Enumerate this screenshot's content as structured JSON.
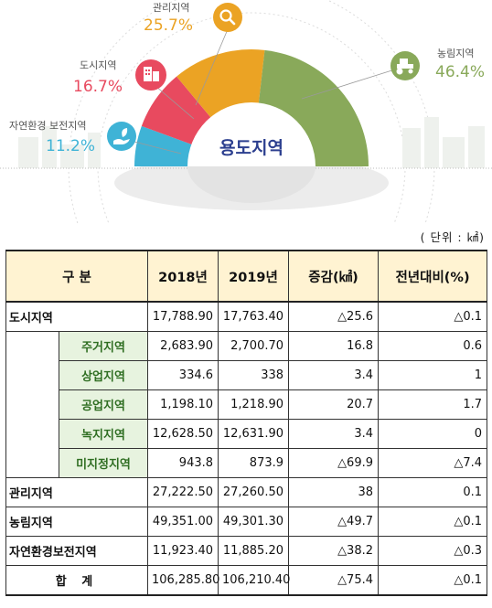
{
  "chart_data": {
    "type": "pie",
    "title": "용도지역",
    "slices": [
      {
        "name": "자연환경 보전지역",
        "pct": "11.2%",
        "color": "#3fb3d6"
      },
      {
        "name": "도시지역",
        "pct": "16.7%",
        "color": "#e84a5f"
      },
      {
        "name": "관리지역",
        "pct": "25.7%",
        "color": "#eba324"
      },
      {
        "name": "농림지역",
        "pct": "46.4%",
        "color": "#89a95a"
      }
    ]
  },
  "icons": {
    "management": "magnifier-icon",
    "urban": "building-icon",
    "nature": "hand-leaf-icon",
    "agri": "tractor-icon"
  },
  "table": {
    "unit": "( 단위 : ㎢)",
    "headers": [
      "구 분",
      "2018년",
      "2019년",
      "증감(㎢)",
      "전년대비(%)"
    ],
    "urban": {
      "label": "도시지역",
      "y2018": "17,788.90",
      "y2019": "17,763.40",
      "diff": "△25.6",
      "ratio": "△0.1"
    },
    "sub_rows": [
      {
        "label": "주거지역",
        "y2018": "2,683.90",
        "y2019": "2,700.70",
        "diff": "16.8",
        "ratio": "0.6"
      },
      {
        "label": "상업지역",
        "y2018": "334.6",
        "y2019": "338",
        "diff": "3.4",
        "ratio": "1"
      },
      {
        "label": "공업지역",
        "y2018": "1,198.10",
        "y2019": "1,218.90",
        "diff": "20.7",
        "ratio": "1.7"
      },
      {
        "label": "녹지지역",
        "y2018": "12,628.50",
        "y2019": "12,631.90",
        "diff": "3.4",
        "ratio": "0"
      },
      {
        "label": "미지정지역",
        "y2018": "943.8",
        "y2019": "873.9",
        "diff": "△69.9",
        "ratio": "△7.4"
      }
    ],
    "other_rows": [
      {
        "label": "관리지역",
        "y2018": "27,222.50",
        "y2019": "27,260.50",
        "diff": "38",
        "ratio": "0.1"
      },
      {
        "label": "농림지역",
        "y2018": "49,351.00",
        "y2019": "49,301.30",
        "diff": "△49.7",
        "ratio": "△0.1"
      },
      {
        "label": "자연환경보전지역",
        "y2018": "11,923.40",
        "y2019": "11,885.20",
        "diff": "△38.2",
        "ratio": "△0.3"
      }
    ],
    "total": {
      "label": "합 계",
      "y2018": "106,285.80",
      "y2019": "106,210.40",
      "diff": "△75.4",
      "ratio": "△0.1"
    }
  }
}
